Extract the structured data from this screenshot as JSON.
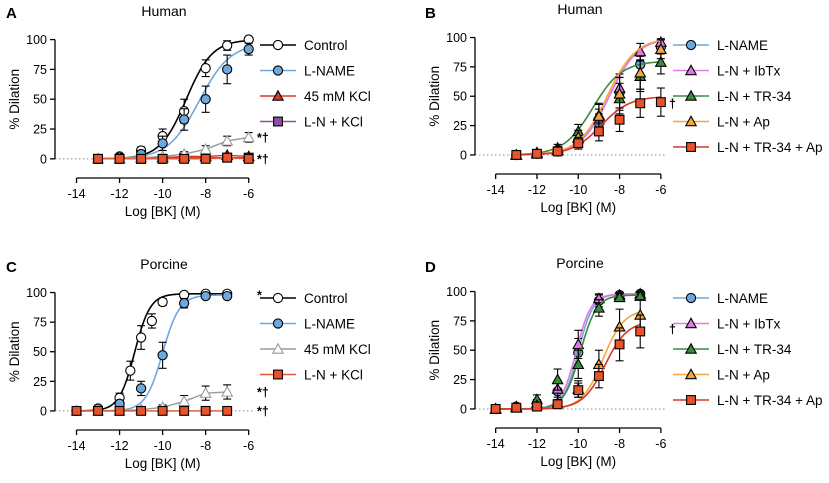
{
  "figure": {
    "colors": {
      "black": "#000000",
      "blue": "#6fa8dc",
      "red": "#d9362a",
      "purple": "#8e4ea3",
      "pink": "#e277e6",
      "green": "#3c8a3c",
      "orange": "#f5a63c",
      "gray": "#9a9a9a",
      "grid": "#8c8c8c"
    }
  },
  "chart_data": [
    {
      "type": "scatter",
      "panel_label": "A",
      "title": "Human",
      "xlabel": "Log [BK] (M)",
      "ylabel": "% Dilation",
      "xlim": [
        -15,
        -5.8
      ],
      "ylim": [
        -6,
        103
      ],
      "xticks": [
        -14,
        -12,
        -10,
        -8,
        -6
      ],
      "xtick_labels": [
        "-14",
        "-12",
        "-10",
        "-8",
        "-6"
      ],
      "yticks": [
        0,
        25,
        50,
        75,
        100
      ],
      "ytick_labels": [
        "0",
        "25",
        "50",
        "75",
        "100"
      ],
      "significance": [
        {
          "text": "*†",
          "y": 18
        },
        {
          "text": "*†",
          "y": 0
        }
      ],
      "series": [
        {
          "name": "Control",
          "marker": "circle",
          "fill": "#ffffff",
          "stroke": "#000000",
          "line": "#000000",
          "x": [
            -13,
            -12,
            -11,
            -10,
            -9,
            -8,
            -7,
            -6
          ],
          "y": [
            0,
            2,
            7,
            19,
            40,
            76,
            95,
            100
          ],
          "err": [
            0,
            1.5,
            3,
            6,
            10,
            7,
            4,
            2
          ],
          "fit": {
            "top": 100,
            "bottom": 0,
            "ec50": -8.9,
            "hill": 0.72
          }
        },
        {
          "name": "L-NAME",
          "marker": "circle",
          "fill": "#6fa8dc",
          "stroke": "#000000",
          "line": "#6fa8dc",
          "x": [
            -13,
            -12,
            -11,
            -10,
            -9,
            -8,
            -7,
            -6
          ],
          "y": [
            0,
            1,
            4,
            13,
            33,
            50,
            75,
            92
          ],
          "err": [
            0,
            1,
            3,
            6,
            9,
            11,
            12,
            5
          ],
          "fit": {
            "top": 97,
            "bottom": 0,
            "ec50": -8.3,
            "hill": 0.6
          }
        },
        {
          "name": "45 mM KCl",
          "marker": "triangle",
          "fill": "#d9362a",
          "stroke": "#000000",
          "line": "#d9362a",
          "x": [
            -13,
            -12,
            -11,
            -10,
            -9,
            -8,
            -7,
            -6
          ],
          "y": [
            0,
            0,
            1,
            1,
            2,
            2,
            3,
            2
          ],
          "err": [
            0,
            0,
            1,
            1,
            1,
            1,
            1,
            1
          ]
        },
        {
          "name": "L-N + KCl",
          "marker": "square",
          "fill": "#8e4ea3",
          "stroke": "#000000",
          "line": "#8e4ea3",
          "x": [
            -13,
            -12,
            -11,
            -10,
            -9,
            -8,
            -7,
            -6
          ],
          "y": [
            0,
            0,
            0,
            0,
            1,
            1,
            1,
            1
          ],
          "err": [
            0,
            0,
            0,
            0,
            0,
            0,
            0,
            0
          ]
        },
        {
          "name": "",
          "marker": "triangle",
          "fill": "#ffffff",
          "stroke": "#9a9a9a",
          "line": "#9a9a9a",
          "legend": false,
          "x": [
            -13,
            -12,
            -11,
            -10,
            -9,
            -8,
            -7,
            -6
          ],
          "y": [
            0,
            0,
            1,
            2,
            4,
            8,
            15,
            18
          ],
          "err": [
            0,
            0,
            1,
            1,
            2,
            3,
            4,
            4
          ]
        },
        {
          "name": "",
          "marker": "square",
          "fill": "#e8532b",
          "stroke": "#000000",
          "line": "#e8532b",
          "legend": false,
          "x": [
            -13,
            -12,
            -11,
            -10,
            -9,
            -8,
            -7,
            -6
          ],
          "y": [
            0,
            0,
            0,
            0,
            0,
            0,
            1,
            0
          ],
          "err": [
            0,
            0,
            0,
            0,
            0,
            0,
            0,
            0
          ]
        }
      ]
    },
    {
      "type": "scatter",
      "panel_label": "B",
      "title": "Human",
      "xlabel": "Log [BK] (M)",
      "ylabel": "% Dilation",
      "xlim": [
        -15,
        -5.8
      ],
      "ylim": [
        -6,
        103
      ],
      "xticks": [
        -14,
        -12,
        -10,
        -8,
        -6
      ],
      "xtick_labels": [
        "-14",
        "-12",
        "-10",
        "-8",
        "-6"
      ],
      "yticks": [
        0,
        25,
        50,
        75,
        100
      ],
      "ytick_labels": [
        "0",
        "25",
        "50",
        "75",
        "100"
      ],
      "significance": [
        {
          "text": "†",
          "y": 44
        }
      ],
      "series": [
        {
          "name": "L-NAME",
          "marker": "circle",
          "fill": "#6fa8dc",
          "stroke": "#000000",
          "line": "#6fa8dc",
          "x": [
            -13,
            -12,
            -11,
            -10,
            -9,
            -8,
            -7,
            -6
          ],
          "y": [
            0,
            1,
            3,
            12,
            27,
            53,
            77,
            92
          ],
          "err": [
            0,
            1,
            2,
            5,
            8,
            13,
            10,
            6
          ],
          "fit": {
            "top": 100,
            "bottom": 0,
            "ec50": -8.5,
            "hill": 0.62
          }
        },
        {
          "name": "L-N + IbTx",
          "marker": "triangle",
          "fill": "#e277e6",
          "stroke": "#000000",
          "line": "#e277e6",
          "x": [
            -13,
            -12,
            -11,
            -10,
            -9,
            -8,
            -7,
            -6
          ],
          "y": [
            0,
            1,
            4,
            14,
            30,
            57,
            88,
            96
          ],
          "err": [
            0,
            1,
            2,
            5,
            9,
            12,
            7,
            3
          ],
          "fit": {
            "top": 100,
            "bottom": 0,
            "ec50": -8.5,
            "hill": 0.62
          }
        },
        {
          "name": "L-N + TR-34",
          "marker": "triangle",
          "fill": "#3c8a3c",
          "stroke": "#000000",
          "line": "#3c8a3c",
          "x": [
            -13,
            -12,
            -11,
            -10,
            -9,
            -8,
            -7,
            -6
          ],
          "y": [
            0,
            2,
            6,
            20,
            34,
            48,
            67,
            79
          ],
          "err": [
            0,
            1,
            3,
            6,
            10,
            13,
            13,
            10
          ],
          "fit": {
            "top": 80,
            "bottom": 0,
            "ec50": -9.3,
            "hill": 0.62
          }
        },
        {
          "name": "L-N + Ap",
          "marker": "triangle",
          "fill": "#f5a63c",
          "stroke": "#000000",
          "line": "#f5a63c",
          "x": [
            -13,
            -12,
            -11,
            -10,
            -9,
            -8,
            -7,
            -6
          ],
          "y": [
            0,
            1,
            4,
            15,
            33,
            52,
            70,
            90
          ],
          "err": [
            0,
            1,
            3,
            6,
            10,
            14,
            14,
            8
          ],
          "fit": {
            "top": 100,
            "bottom": 0,
            "ec50": -8.6,
            "hill": 0.62
          }
        },
        {
          "name": "L-N + TR-34 + Ap",
          "marker": "square",
          "fill": "#e8532b",
          "stroke": "#000000",
          "line": "#d9362a",
          "x": [
            -13,
            -12,
            -11,
            -10,
            -9,
            -8,
            -7,
            -6
          ],
          "y": [
            0,
            1,
            3,
            10,
            20,
            30,
            44,
            45
          ],
          "err": [
            0,
            1,
            2,
            5,
            8,
            10,
            12,
            12
          ],
          "fit": {
            "top": 50,
            "bottom": 0,
            "ec50": -8.9,
            "hill": 0.62
          }
        }
      ]
    },
    {
      "type": "scatter",
      "panel_label": "C",
      "title": "Porcine",
      "xlabel": "Log [BK] (M)",
      "ylabel": "% Dilation",
      "xlim": [
        -15,
        -5.8
      ],
      "ylim": [
        -6,
        103
      ],
      "xticks": [
        -14,
        -12,
        -10,
        -8,
        -6
      ],
      "xtick_labels": [
        "-14",
        "-12",
        "-10",
        "-8",
        "-6"
      ],
      "yticks": [
        0,
        25,
        50,
        75,
        100
      ],
      "ytick_labels": [
        "0",
        "25",
        "50",
        "75",
        "100"
      ],
      "significance": [
        {
          "text": "*",
          "y": 98
        },
        {
          "text": "*†",
          "y": 16
        },
        {
          "text": "*†",
          "y": 0
        }
      ],
      "series": [
        {
          "name": "Control",
          "marker": "circle",
          "fill": "#ffffff",
          "stroke": "#000000",
          "line": "#000000",
          "x": [
            -14,
            -13,
            -12,
            -11.5,
            -11,
            -10.5,
            -10,
            -9,
            -8,
            -7
          ],
          "y": [
            0,
            2,
            11,
            34,
            62,
            76,
            92,
            98,
            99,
            99
          ],
          "err": [
            0,
            1,
            4,
            8,
            10,
            6,
            3,
            2,
            1,
            1
          ],
          "fit": {
            "top": 99,
            "bottom": 0,
            "ec50": -11.3,
            "hill": 1.2
          }
        },
        {
          "name": "L-NAME",
          "marker": "circle",
          "fill": "#6fa8dc",
          "stroke": "#000000",
          "line": "#6fa8dc",
          "x": [
            -14,
            -13,
            -12,
            -11,
            -10,
            -9,
            -8,
            -7
          ],
          "y": [
            0,
            2,
            6,
            19,
            47,
            91,
            97,
            97
          ],
          "err": [
            0,
            1,
            3,
            6,
            11,
            4,
            2,
            2
          ],
          "fit": {
            "top": 98,
            "bottom": 0,
            "ec50": -10.0,
            "hill": 1.1
          }
        },
        {
          "name": "45 mM KCl",
          "marker": "triangle",
          "fill": "#ffffff",
          "stroke": "#9a9a9a",
          "line": "#9a9a9a",
          "x": [
            -14,
            -13,
            -12,
            -11,
            -10,
            -9,
            -8,
            -7
          ],
          "y": [
            0,
            0,
            0,
            1,
            3,
            8,
            15,
            16
          ],
          "err": [
            0,
            0,
            0,
            1,
            2,
            5,
            6,
            6
          ]
        },
        {
          "name": "L-N + KCl",
          "marker": "square",
          "fill": "#e8532b",
          "stroke": "#000000",
          "line": "#e8532b",
          "x": [
            -14,
            -13,
            -12,
            -11,
            -10,
            -9,
            -8,
            -7
          ],
          "y": [
            0,
            0,
            0,
            0,
            0,
            0,
            0,
            0
          ],
          "err": [
            0,
            0,
            0,
            0,
            0,
            0,
            0,
            0
          ]
        }
      ]
    },
    {
      "type": "scatter",
      "panel_label": "D",
      "title": "Porcine",
      "xlabel": "Log [BK] (M)",
      "ylabel": "% Dilation",
      "xlim": [
        -15,
        -5.8
      ],
      "ylim": [
        -6,
        103
      ],
      "xticks": [
        -14,
        -12,
        -10,
        -8,
        -6
      ],
      "xtick_labels": [
        "-14",
        "-12",
        "-10",
        "-8",
        "-6"
      ],
      "yticks": [
        0,
        25,
        50,
        75,
        100
      ],
      "ytick_labels": [
        "0",
        "25",
        "50",
        "75",
        "100"
      ],
      "significance": [
        {
          "text": "†",
          "y": 68
        }
      ],
      "series": [
        {
          "name": "L-NAME",
          "marker": "circle",
          "fill": "#6fa8dc",
          "stroke": "#000000",
          "line": "#6fa8dc",
          "x": [
            -14,
            -13,
            -12,
            -11,
            -10,
            -9,
            -8,
            -7
          ],
          "y": [
            0,
            2,
            5,
            15,
            48,
            92,
            97,
            98
          ],
          "err": [
            0,
            1,
            3,
            7,
            12,
            5,
            2,
            2
          ],
          "fit": {
            "top": 98,
            "bottom": 0,
            "ec50": -10.0,
            "hill": 1.2
          }
        },
        {
          "name": "L-N + IbTx",
          "marker": "triangle",
          "fill": "#e277e6",
          "stroke": "#000000",
          "line": "#e277e6",
          "x": [
            -14,
            -13,
            -12,
            -11,
            -10,
            -9,
            -8,
            -7
          ],
          "y": [
            0,
            1,
            5,
            17,
            55,
            94,
            97,
            98
          ],
          "err": [
            0,
            1,
            3,
            7,
            12,
            4,
            2,
            2
          ],
          "fit": {
            "top": 98,
            "bottom": 0,
            "ec50": -10.1,
            "hill": 1.2
          }
        },
        {
          "name": "L-N + TR-34",
          "marker": "triangle",
          "fill": "#3c8a3c",
          "stroke": "#000000",
          "line": "#3c8a3c",
          "x": [
            -14,
            -13,
            -12,
            -11,
            -10,
            -9,
            -8,
            -7
          ],
          "y": [
            0,
            2,
            8,
            25,
            38,
            86,
            95,
            96
          ],
          "err": [
            0,
            1,
            4,
            9,
            12,
            7,
            3,
            3
          ],
          "fit": {
            "top": 97,
            "bottom": 0,
            "ec50": -9.9,
            "hill": 1.1
          }
        },
        {
          "name": "L-N + Ap",
          "marker": "triangle",
          "fill": "#f5a63c",
          "stroke": "#000000",
          "line": "#f5a63c",
          "x": [
            -14,
            -13,
            -12,
            -11,
            -10,
            -9,
            -8,
            -7
          ],
          "y": [
            0,
            1,
            3,
            5,
            17,
            38,
            70,
            80
          ],
          "err": [
            0,
            1,
            2,
            3,
            7,
            12,
            15,
            13
          ],
          "fit": {
            "top": 85,
            "bottom": 0,
            "ec50": -8.8,
            "hill": 0.85
          }
        },
        {
          "name": "L-N + TR-34 + Ap",
          "marker": "square",
          "fill": "#e8532b",
          "stroke": "#000000",
          "line": "#d9362a",
          "x": [
            -14,
            -13,
            -12,
            -11,
            -10,
            -9,
            -8,
            -7
          ],
          "y": [
            0,
            1,
            2,
            4,
            16,
            28,
            55,
            66
          ],
          "err": [
            0,
            1,
            2,
            3,
            6,
            10,
            14,
            14
          ],
          "fit": {
            "top": 75,
            "bottom": 0,
            "ec50": -8.7,
            "hill": 0.8
          }
        }
      ]
    }
  ]
}
